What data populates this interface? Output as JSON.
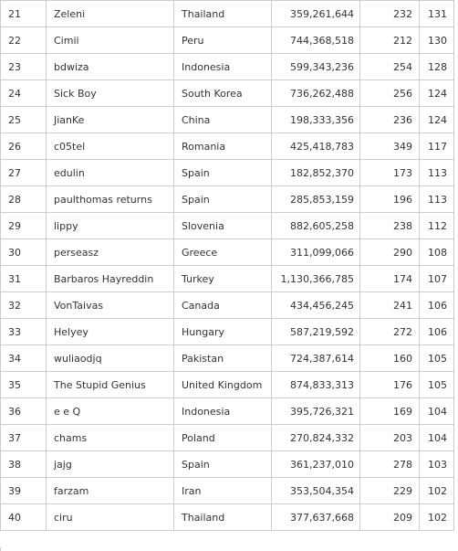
{
  "rows": [
    {
      "rank": "21",
      "name": "Zeleni",
      "country": "Thailand",
      "score": "359,261,644",
      "a": "232",
      "b": "131"
    },
    {
      "rank": "22",
      "name": "Cimii",
      "country": "Peru",
      "score": "744,368,518",
      "a": "212",
      "b": "130"
    },
    {
      "rank": "23",
      "name": "bdwiza",
      "country": "Indonesia",
      "score": "599,343,236",
      "a": "254",
      "b": "128"
    },
    {
      "rank": "24",
      "name": "Sick Boy",
      "country": "South Korea",
      "score": "736,262,488",
      "a": "256",
      "b": "124"
    },
    {
      "rank": "25",
      "name": "JianKe",
      "country": "China",
      "score": "198,333,356",
      "a": "236",
      "b": "124"
    },
    {
      "rank": "26",
      "name": "c05tel",
      "country": "Romania",
      "score": "425,418,783",
      "a": "349",
      "b": "117"
    },
    {
      "rank": "27",
      "name": "edulin",
      "country": "Spain",
      "score": "182,852,370",
      "a": "173",
      "b": "113"
    },
    {
      "rank": "28",
      "name": "paulthomas returns",
      "country": "Spain",
      "score": "285,853,159",
      "a": "196",
      "b": "113"
    },
    {
      "rank": "29",
      "name": "lippy",
      "country": "Slovenia",
      "score": "882,605,258",
      "a": "238",
      "b": "112"
    },
    {
      "rank": "30",
      "name": "perseasz",
      "country": "Greece",
      "score": "311,099,066",
      "a": "290",
      "b": "108"
    },
    {
      "rank": "31",
      "name": "Barbaros Hayreddin",
      "country": "Turkey",
      "score": "1,130,366,785",
      "a": "174",
      "b": "107"
    },
    {
      "rank": "32",
      "name": "VonTaivas",
      "country": "Canada",
      "score": "434,456,245",
      "a": "241",
      "b": "106"
    },
    {
      "rank": "33",
      "name": "Helyey",
      "country": "Hungary",
      "score": "587,219,592",
      "a": "272",
      "b": "106"
    },
    {
      "rank": "34",
      "name": "wuliaodjq",
      "country": "Pakistan",
      "score": "724,387,614",
      "a": "160",
      "b": "105"
    },
    {
      "rank": "35",
      "name": "The Stupid Genius",
      "country": "United Kingdom",
      "score": "874,833,313",
      "a": "176",
      "b": "105"
    },
    {
      "rank": "36",
      "name": "e e Q",
      "country": "Indonesia",
      "score": "395,726,321",
      "a": "169",
      "b": "104"
    },
    {
      "rank": "37",
      "name": "chams",
      "country": "Poland",
      "score": "270,824,332",
      "a": "203",
      "b": "104"
    },
    {
      "rank": "38",
      "name": "jajg",
      "country": "Spain",
      "score": "361,237,010",
      "a": "278",
      "b": "103"
    },
    {
      "rank": "39",
      "name": "farzam",
      "country": "Iran",
      "score": "353,504,354",
      "a": "229",
      "b": "102"
    },
    {
      "rank": "40",
      "name": "ciru",
      "country": "Thailand",
      "score": "377,637,668",
      "a": "209",
      "b": "102"
    }
  ]
}
